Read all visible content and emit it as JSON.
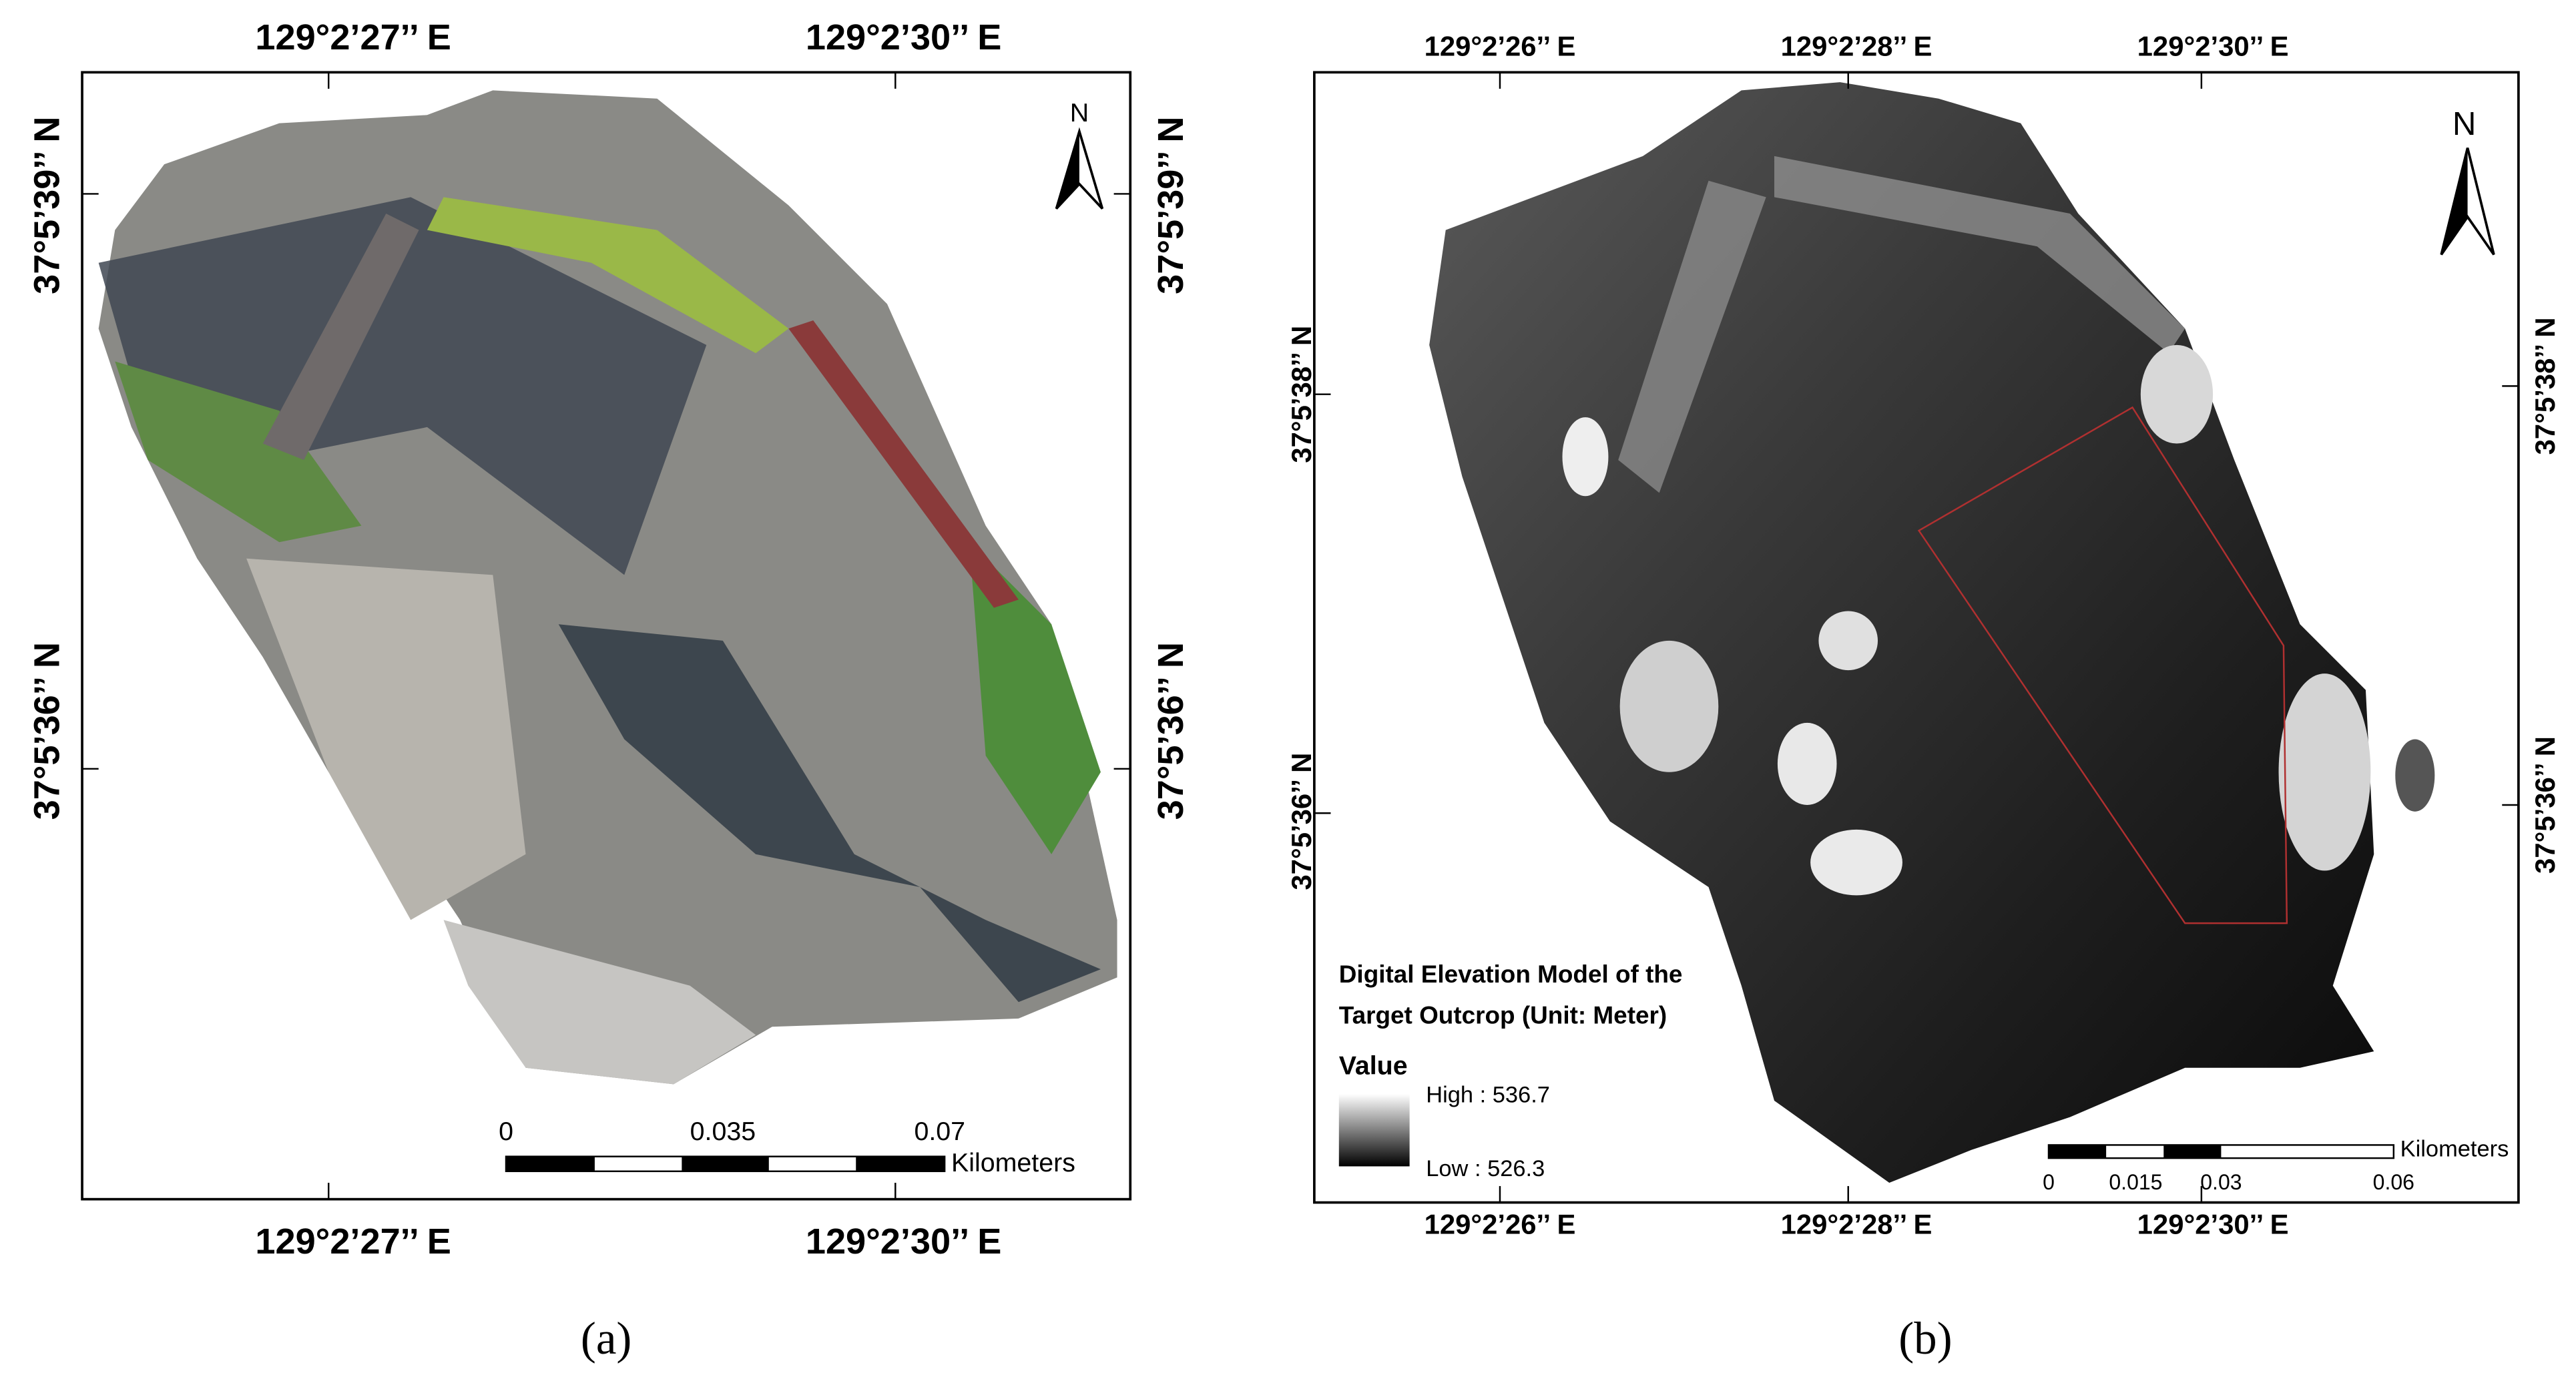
{
  "panels": [
    {
      "caption": "(a)",
      "top_labels": [
        "129°2’27’’ E",
        "129°2’30’’ E"
      ],
      "bottom_labels": [
        "129°2’27’’ E",
        "129°2’30’’ E"
      ],
      "left_labels": [
        "37°5’39’’ N",
        "37°5’36’’ N"
      ],
      "right_labels": [
        "37°5’39’’ N",
        "37°5’36’’ N"
      ],
      "scale_labels": [
        "0",
        "0.035",
        "0.07"
      ],
      "scale_unit": "Kilometers",
      "north": "N"
    },
    {
      "caption": "(b)",
      "top_labels": [
        "129°2’26’’ E",
        "129°2’28’’ E",
        "129°2’30’’ E"
      ],
      "bottom_labels": [
        "129°2’26’’ E",
        "129°2’28’’ E",
        "129°2’30’’ E"
      ],
      "left_labels": [
        "37°5’38’’ N",
        "37°5’36’’ N"
      ],
      "right_labels": [
        "37°5’38’’ N",
        "37°5’36’’ N"
      ],
      "scale_labels": [
        "0",
        "0.015",
        "0.03",
        "0.06"
      ],
      "scale_unit": "Kilometers",
      "north": "N",
      "legend": {
        "title_lines": [
          "Digital Elevation Model of the",
          "Target Outcrop (Unit: Meter)"
        ],
        "heading": "Value",
        "high": "High : 536.7",
        "low": "Low : 526.3"
      }
    }
  ]
}
